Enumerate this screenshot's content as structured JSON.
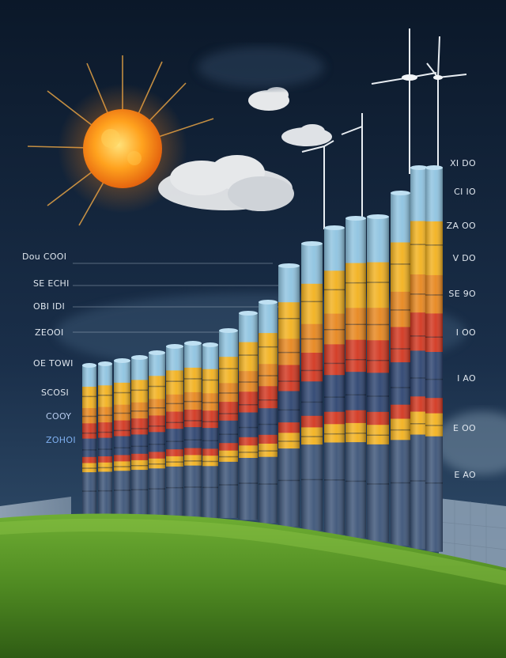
{
  "scene": {
    "left_labels": [
      {
        "text": "Dou COOI",
        "color": "#e6ecf2"
      },
      {
        "text": "SE ECHI",
        "color": "#e6ecf2"
      },
      {
        "text": "OBI IDI",
        "color": "#e6ecf2"
      },
      {
        "text": "ZEOOI",
        "color": "#e6ecf2"
      },
      {
        "text": "OE TOWI",
        "color": "#e6ecf2"
      },
      {
        "text": "SCOSI",
        "color": "#e6ecf2"
      },
      {
        "text": "COOY",
        "color": "#b9cdf0"
      },
      {
        "text": "ZOHOI",
        "color": "#7fb0f0"
      }
    ],
    "right_labels": [
      "XI DO",
      "CI IO",
      "ZA OO",
      "V DO",
      "SE 9O",
      "I OO",
      "I AO",
      "E OO",
      "E AO"
    ],
    "colors": {
      "sky_top": "#0c1a2e",
      "sky_bottom": "#24405e",
      "sun": "#ff9a1c",
      "grass": "#5f9a2c",
      "band_blue_light": "#8ec3e0",
      "band_yellow": "#f2b11e",
      "band_orange": "#e7861d",
      "band_red": "#d2361f",
      "band_navy": "#2d4470"
    },
    "icons": [
      "sun-icon",
      "cloud-icon",
      "wind-turbine-icon",
      "solar-panel-icon"
    ]
  }
}
